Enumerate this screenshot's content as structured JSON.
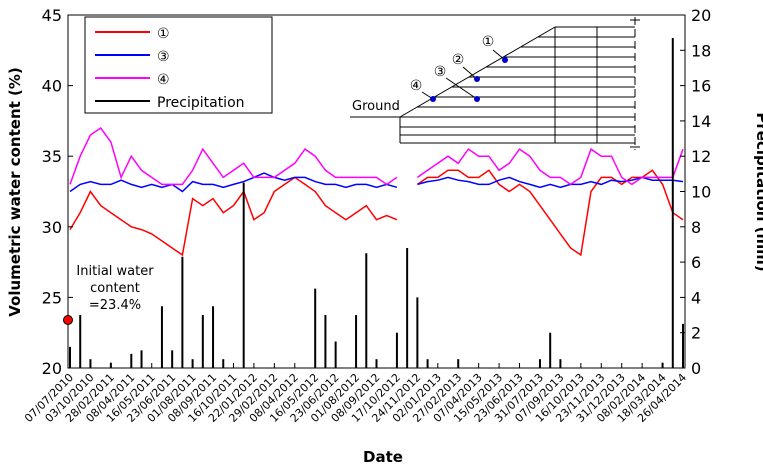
{
  "chart_data": {
    "type": "line",
    "x_label": "Date",
    "y_label": "Volumetric water content (%)",
    "y2_label": "Precipitation (mm)",
    "categories": [
      "07/07/2010",
      null,
      "03/10/2010",
      null,
      "28/02/2011",
      null,
      "08/04/2011",
      null,
      "16/05/2011",
      null,
      "23/06/2011",
      null,
      "01/08/2011",
      null,
      "08/09/2011",
      null,
      "16/10/2011",
      null,
      "22/01/2012",
      null,
      "29/02/2012",
      null,
      "08/04/2012",
      null,
      "16/05/2012",
      null,
      "23/06/2012",
      null,
      "01/08/2012",
      null,
      "08/09/2012",
      null,
      "17/10/2012",
      null,
      "24/11/2012",
      null,
      "02/01/2013",
      null,
      "27/02/2013",
      null,
      "07/04/2013",
      null,
      "15/05/2013",
      null,
      "23/06/2013",
      null,
      "31/07/2013",
      null,
      "07/09/2013",
      null,
      "16/10/2013",
      null,
      "23/11/2013",
      null,
      "31/12/2013",
      null,
      "08/02/2014",
      null,
      "18/03/2014",
      null,
      "26/04/2014"
    ],
    "ylim": [
      20,
      45
    ],
    "yticks": [
      20,
      25,
      30,
      35,
      40,
      45
    ],
    "y2lim": [
      0,
      20
    ],
    "y2ticks": [
      0,
      2,
      4,
      6,
      8,
      10,
      12,
      14,
      16,
      18,
      20
    ],
    "legend": "upper left",
    "series": [
      {
        "name": "①",
        "color": "#ff0000",
        "values": [
          29.8,
          31,
          32.5,
          31.5,
          31,
          30.5,
          30,
          29.8,
          29.5,
          29,
          28.5,
          28,
          32,
          31.5,
          32,
          31,
          31.5,
          32.5,
          30.5,
          31,
          32.5,
          33,
          33.5,
          33,
          32.5,
          31.5,
          31,
          30.5,
          31,
          31.5,
          30.5,
          30.8,
          30.5,
          null,
          33,
          33.5,
          33.5,
          34,
          34,
          33.5,
          33.5,
          34,
          33,
          32.5,
          33,
          32.5,
          31.5,
          30.5,
          29.5,
          28.5,
          28,
          32.5,
          33.5,
          33.5,
          33,
          33.5,
          33.5,
          34,
          33,
          31,
          30.5
        ]
      },
      {
        "name": "③",
        "color": "#0000ff",
        "values": [
          32.5,
          33,
          33.2,
          33,
          33,
          33.3,
          33,
          32.8,
          33,
          32.8,
          33,
          32.5,
          33.2,
          33,
          33,
          32.8,
          33,
          33.2,
          33.5,
          33.8,
          33.5,
          33.3,
          33.5,
          33.5,
          33.2,
          33,
          33,
          32.8,
          33,
          33,
          32.8,
          33,
          32.8,
          null,
          33,
          33.2,
          33.3,
          33.5,
          33.3,
          33.2,
          33,
          33,
          33.3,
          33.5,
          33.2,
          33,
          32.8,
          33,
          32.8,
          33,
          33,
          33.2,
          33,
          33.3,
          33.2,
          33.3,
          33.5,
          33.3,
          33.3,
          33.3,
          33.2
        ]
      },
      {
        "name": "④",
        "color": "#ff00ff",
        "values": [
          33,
          35,
          36.5,
          37,
          36,
          33.5,
          35,
          34,
          33.5,
          33,
          33,
          33,
          34,
          35.5,
          34.5,
          33.5,
          34,
          34.5,
          33.5,
          33.5,
          33.5,
          34,
          34.5,
          35.5,
          35,
          34,
          33.5,
          33.5,
          33.5,
          33.5,
          33.5,
          33,
          33.5,
          null,
          33.5,
          34,
          34.5,
          35,
          34.5,
          35.5,
          35,
          35,
          34,
          34.5,
          35.5,
          35,
          34,
          33.5,
          33.5,
          33,
          33.5,
          35.5,
          35,
          35,
          33.5,
          33,
          33.5,
          33.5,
          33.5,
          33.5,
          35.5
        ]
      },
      {
        "name": "Precipitation",
        "color": "#000000",
        "axis": "y2",
        "type": "bar",
        "values": [
          1.2,
          3,
          0.5,
          0,
          0.3,
          0,
          0.8,
          1,
          0,
          3.5,
          1,
          6.3,
          0.5,
          3,
          3.5,
          0.5,
          0,
          10.5,
          0,
          0,
          0,
          0,
          0,
          0,
          4.5,
          3,
          1.5,
          0,
          3,
          6.5,
          0.5,
          0,
          2,
          6.8,
          4,
          0.5,
          0,
          0,
          0.5,
          0,
          0,
          0,
          0,
          0,
          0,
          0,
          0.5,
          2,
          0.5,
          0,
          0,
          0,
          0,
          0,
          0,
          0,
          0,
          0,
          0.3,
          18.7,
          2.5
        ]
      }
    ],
    "initial_point": {
      "value": 23.4,
      "color": "#ff0000",
      "label": [
        "Initial water",
        "content",
        "=23.4%"
      ]
    },
    "inset": {
      "ground": "Ground",
      "points": [
        "①",
        "②",
        "③",
        "④"
      ]
    }
  }
}
